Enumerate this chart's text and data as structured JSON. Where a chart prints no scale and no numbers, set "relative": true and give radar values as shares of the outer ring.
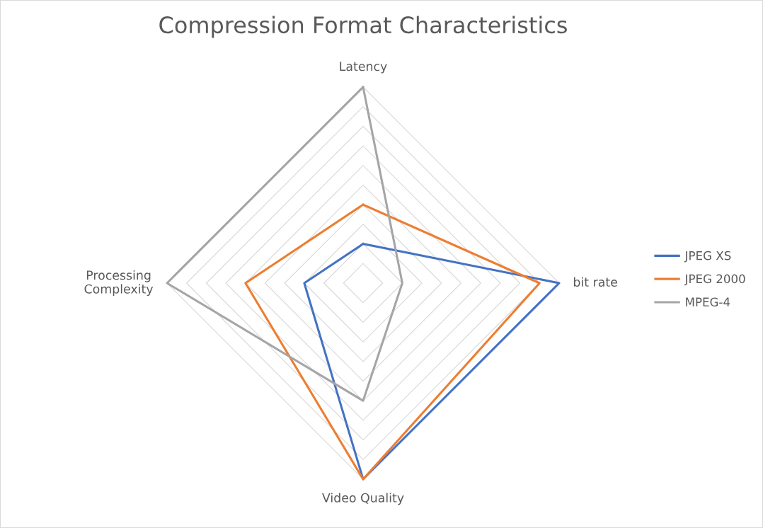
{
  "chart_data": {
    "type": "radar",
    "title": "Compression Format Characteristics",
    "categories": [
      "Latency",
      "bit rate",
      "Video Quality",
      "Processing\nComplexity"
    ],
    "relative": true,
    "grid": true,
    "legend": "right",
    "series": [
      {
        "name": "JPEG XS",
        "color": "#4472c4",
        "values": [
          0.2,
          1.0,
          1.0,
          0.3
        ]
      },
      {
        "name": "JPEG 2000",
        "color": "#ed7d31",
        "values": [
          0.4,
          0.9,
          1.0,
          0.6
        ]
      },
      {
        "name": "MPEG-4",
        "color": "#a5a5a5",
        "values": [
          1.0,
          0.2,
          0.6,
          1.0
        ]
      }
    ]
  }
}
